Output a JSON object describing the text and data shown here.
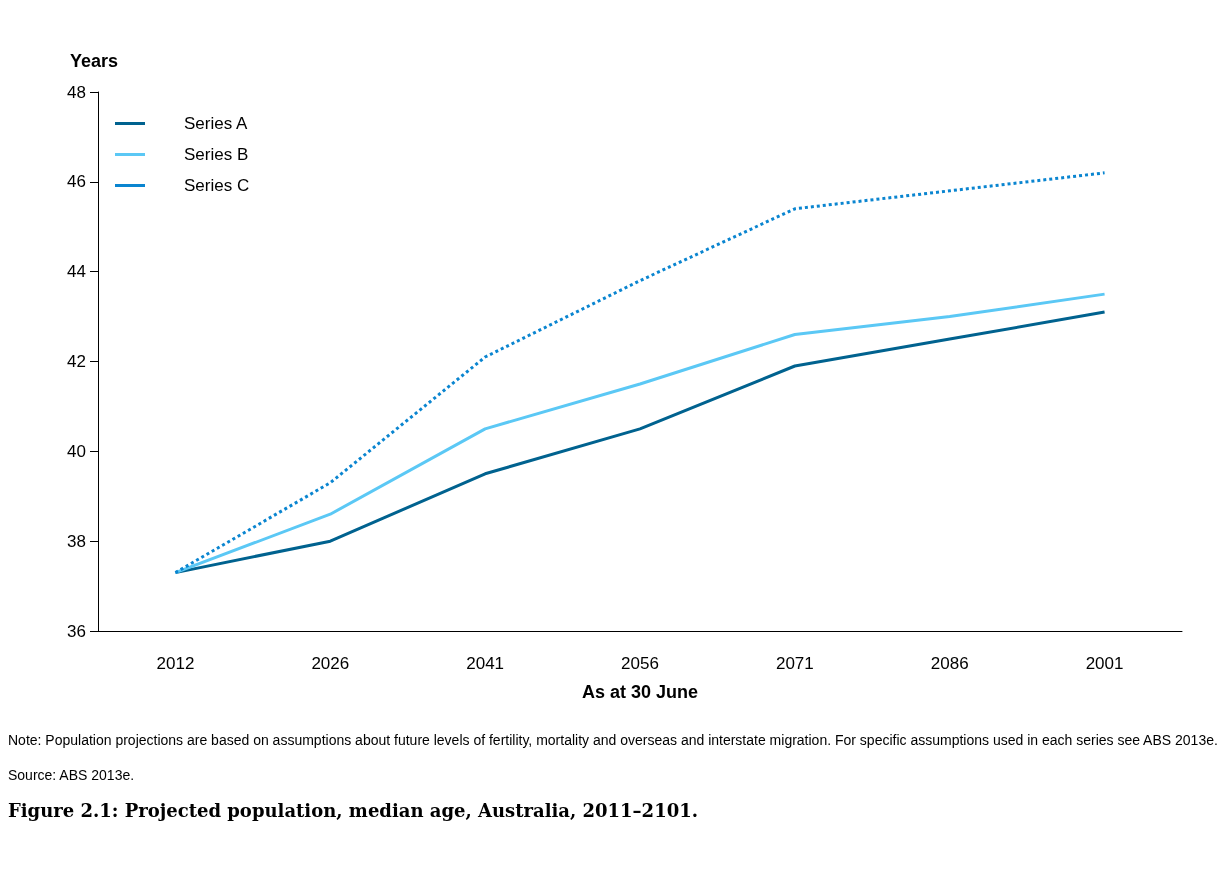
{
  "chart_data": {
    "type": "line",
    "title": "Figure 2.1: Projected population, median age, Australia, 2011–2101.",
    "ylabel": "Years",
    "xlabel": "As at 30 June",
    "categories": [
      "2012",
      "2026",
      "2041",
      "2056",
      "2071",
      "2086",
      "2001"
    ],
    "series": [
      {
        "name": "Series A",
        "color": "#00628f",
        "line_style": "solid",
        "values": [
          37.3,
          38.0,
          39.5,
          40.5,
          41.9,
          42.5,
          43.1
        ]
      },
      {
        "name": "Series B",
        "color": "#5bc8f5",
        "line_style": "solid",
        "values": [
          37.3,
          38.6,
          40.5,
          41.5,
          42.6,
          43.0,
          43.5
        ]
      },
      {
        "name": "Series C",
        "color": "#0a85d0",
        "line_style": "dotted",
        "values": [
          37.3,
          39.3,
          42.1,
          43.8,
          45.4,
          45.8,
          46.2
        ]
      }
    ],
    "ylim": [
      36,
      48
    ],
    "yticks": [
      36,
      38,
      40,
      42,
      44,
      46,
      48
    ],
    "grid": false,
    "legend": "top left",
    "marker": "none",
    "annotations": [
      "Note: Population projections are based on assumptions about future levels of fertility, mortality and overseas and interstate migration. For specific assumptions used in each series see ABS 2013e.",
      "Source: ABS 2013e."
    ]
  }
}
